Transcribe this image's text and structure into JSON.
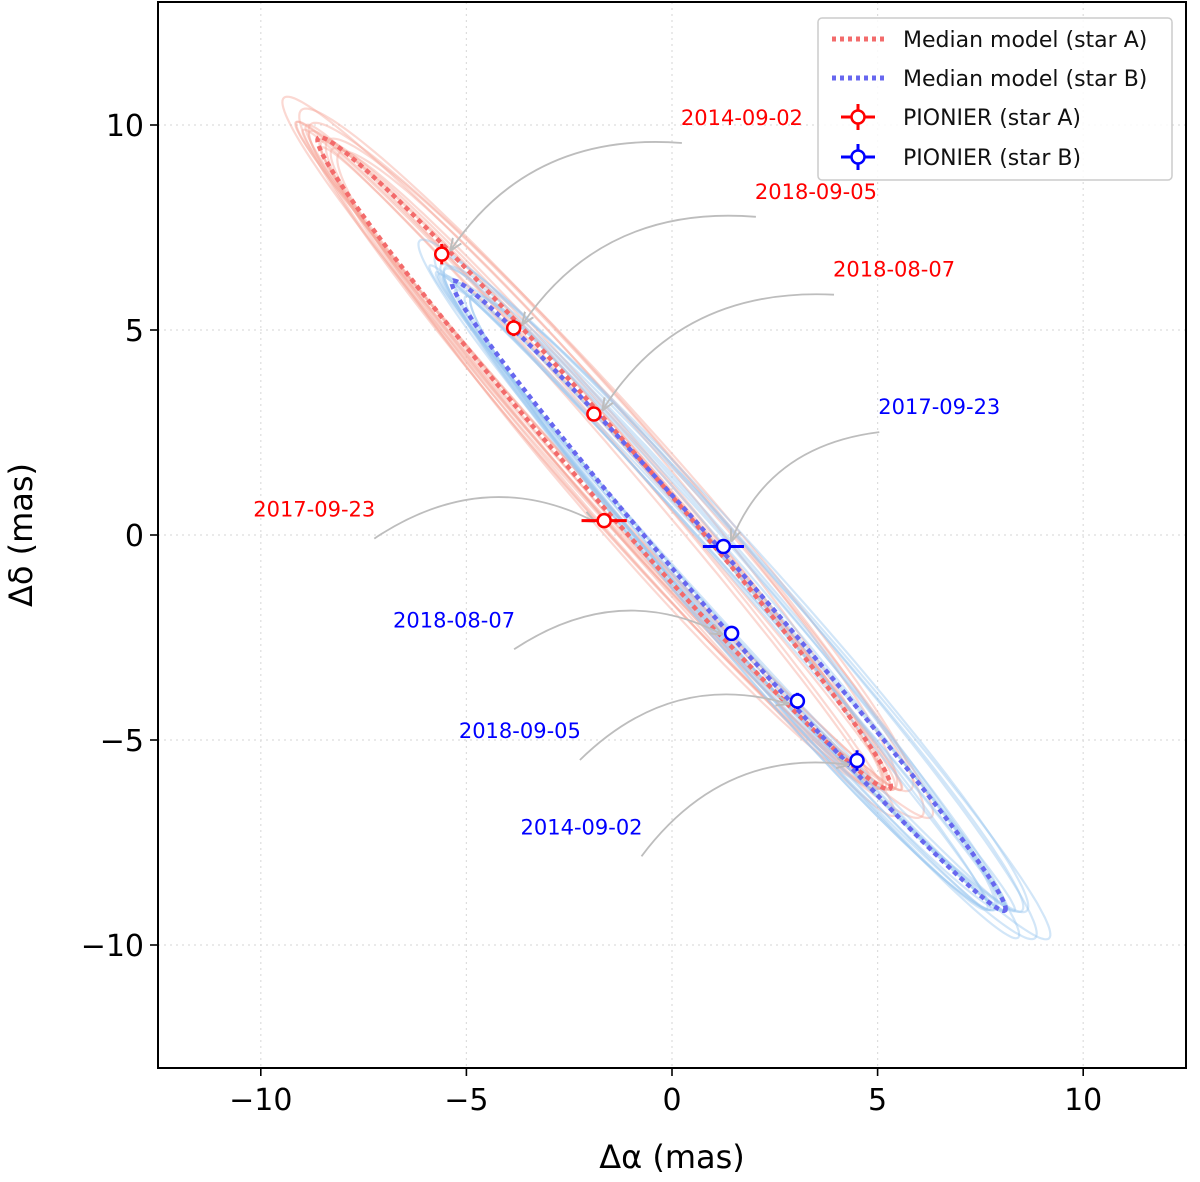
{
  "chart_data": {
    "type": "scatter",
    "xlabel": "Δα (mas)",
    "ylabel": "Δδ (mas)",
    "xlim": [
      -12.5,
      12.5
    ],
    "ylim": [
      -13.0,
      13.0
    ],
    "xticks": [
      -10,
      -5,
      0,
      5,
      10
    ],
    "yticks": [
      -10,
      -5,
      0,
      5,
      10
    ],
    "xtick_labels": [
      "−10",
      "−5",
      "0",
      "5",
      "10"
    ],
    "ytick_labels": [
      "−10",
      "−5",
      "0",
      "5",
      "10"
    ],
    "grid": true,
    "legend_position": "top-right",
    "colors": {
      "star_a": "#ff0000",
      "star_b": "#0000ff",
      "model_a": "#f36b6b",
      "model_b": "#6767ef",
      "posterior_a": "#f7a99c",
      "posterior_b": "#9cc8ef",
      "arrow": "#bdbdbd"
    },
    "legend": [
      {
        "label": "Median model (star A)",
        "kind": "line",
        "series": "model_a"
      },
      {
        "label": "Median model (star B)",
        "kind": "line",
        "series": "model_b"
      },
      {
        "label": "PIONIER (star A)",
        "kind": "marker",
        "series": "star_a"
      },
      {
        "label": "PIONIER (star B)",
        "kind": "marker",
        "series": "star_b"
      }
    ],
    "series": [
      {
        "name": "PIONIER (star A)",
        "color": "#ff0000",
        "points": [
          {
            "date": "2014-09-02",
            "x": -5.6,
            "y": 6.85,
            "xerr": 0.15,
            "yerr": 0.25
          },
          {
            "date": "2018-09-05",
            "x": -3.85,
            "y": 5.05,
            "xerr": 0.1,
            "yerr": 0.2
          },
          {
            "date": "2018-08-07",
            "x": -1.9,
            "y": 2.95,
            "xerr": 0.1,
            "yerr": 0.15
          },
          {
            "date": "2017-09-23",
            "x": -1.65,
            "y": 0.35,
            "xerr": 0.55,
            "yerr": 0.1
          }
        ],
        "annotations": [
          {
            "date": "2014-09-02",
            "tx": 1.7,
            "ty": 10.0
          },
          {
            "date": "2018-09-05",
            "tx": 3.5,
            "ty": 8.2
          },
          {
            "date": "2018-08-07",
            "tx": 5.4,
            "ty": 6.3
          },
          {
            "date": "2017-09-23",
            "tx": -8.7,
            "ty": 0.45
          }
        ]
      },
      {
        "name": "PIONIER (star B)",
        "color": "#0000ff",
        "points": [
          {
            "date": "2017-09-23",
            "x": 1.25,
            "y": -0.28,
            "xerr": 0.5,
            "yerr": 0.12
          },
          {
            "date": "2018-08-07",
            "x": 1.45,
            "y": -2.4,
            "xerr": 0.1,
            "yerr": 0.15
          },
          {
            "date": "2018-09-05",
            "x": 3.05,
            "y": -4.05,
            "xerr": 0.1,
            "yerr": 0.2
          },
          {
            "date": "2014-09-02",
            "x": 4.5,
            "y": -5.5,
            "xerr": 0.12,
            "yerr": 0.25
          }
        ],
        "annotations": [
          {
            "date": "2017-09-23",
            "tx": 6.5,
            "ty": 2.95
          },
          {
            "date": "2018-08-07",
            "tx": -5.3,
            "ty": -2.25
          },
          {
            "date": "2018-09-05",
            "tx": -3.7,
            "ty": -4.95
          },
          {
            "date": "2014-09-02",
            "tx": -2.2,
            "ty": -7.3
          }
        ]
      }
    ],
    "orbit_models": [
      {
        "name": "Median model (star A)",
        "center": [
          -1.65,
          1.75
        ],
        "a": 10.55,
        "b": 0.72,
        "angle_deg": -48.8
      },
      {
        "name": "Median model (star B)",
        "center": [
          1.38,
          -1.48
        ],
        "a": 10.2,
        "b": 0.6,
        "angle_deg": -48.8
      }
    ]
  }
}
